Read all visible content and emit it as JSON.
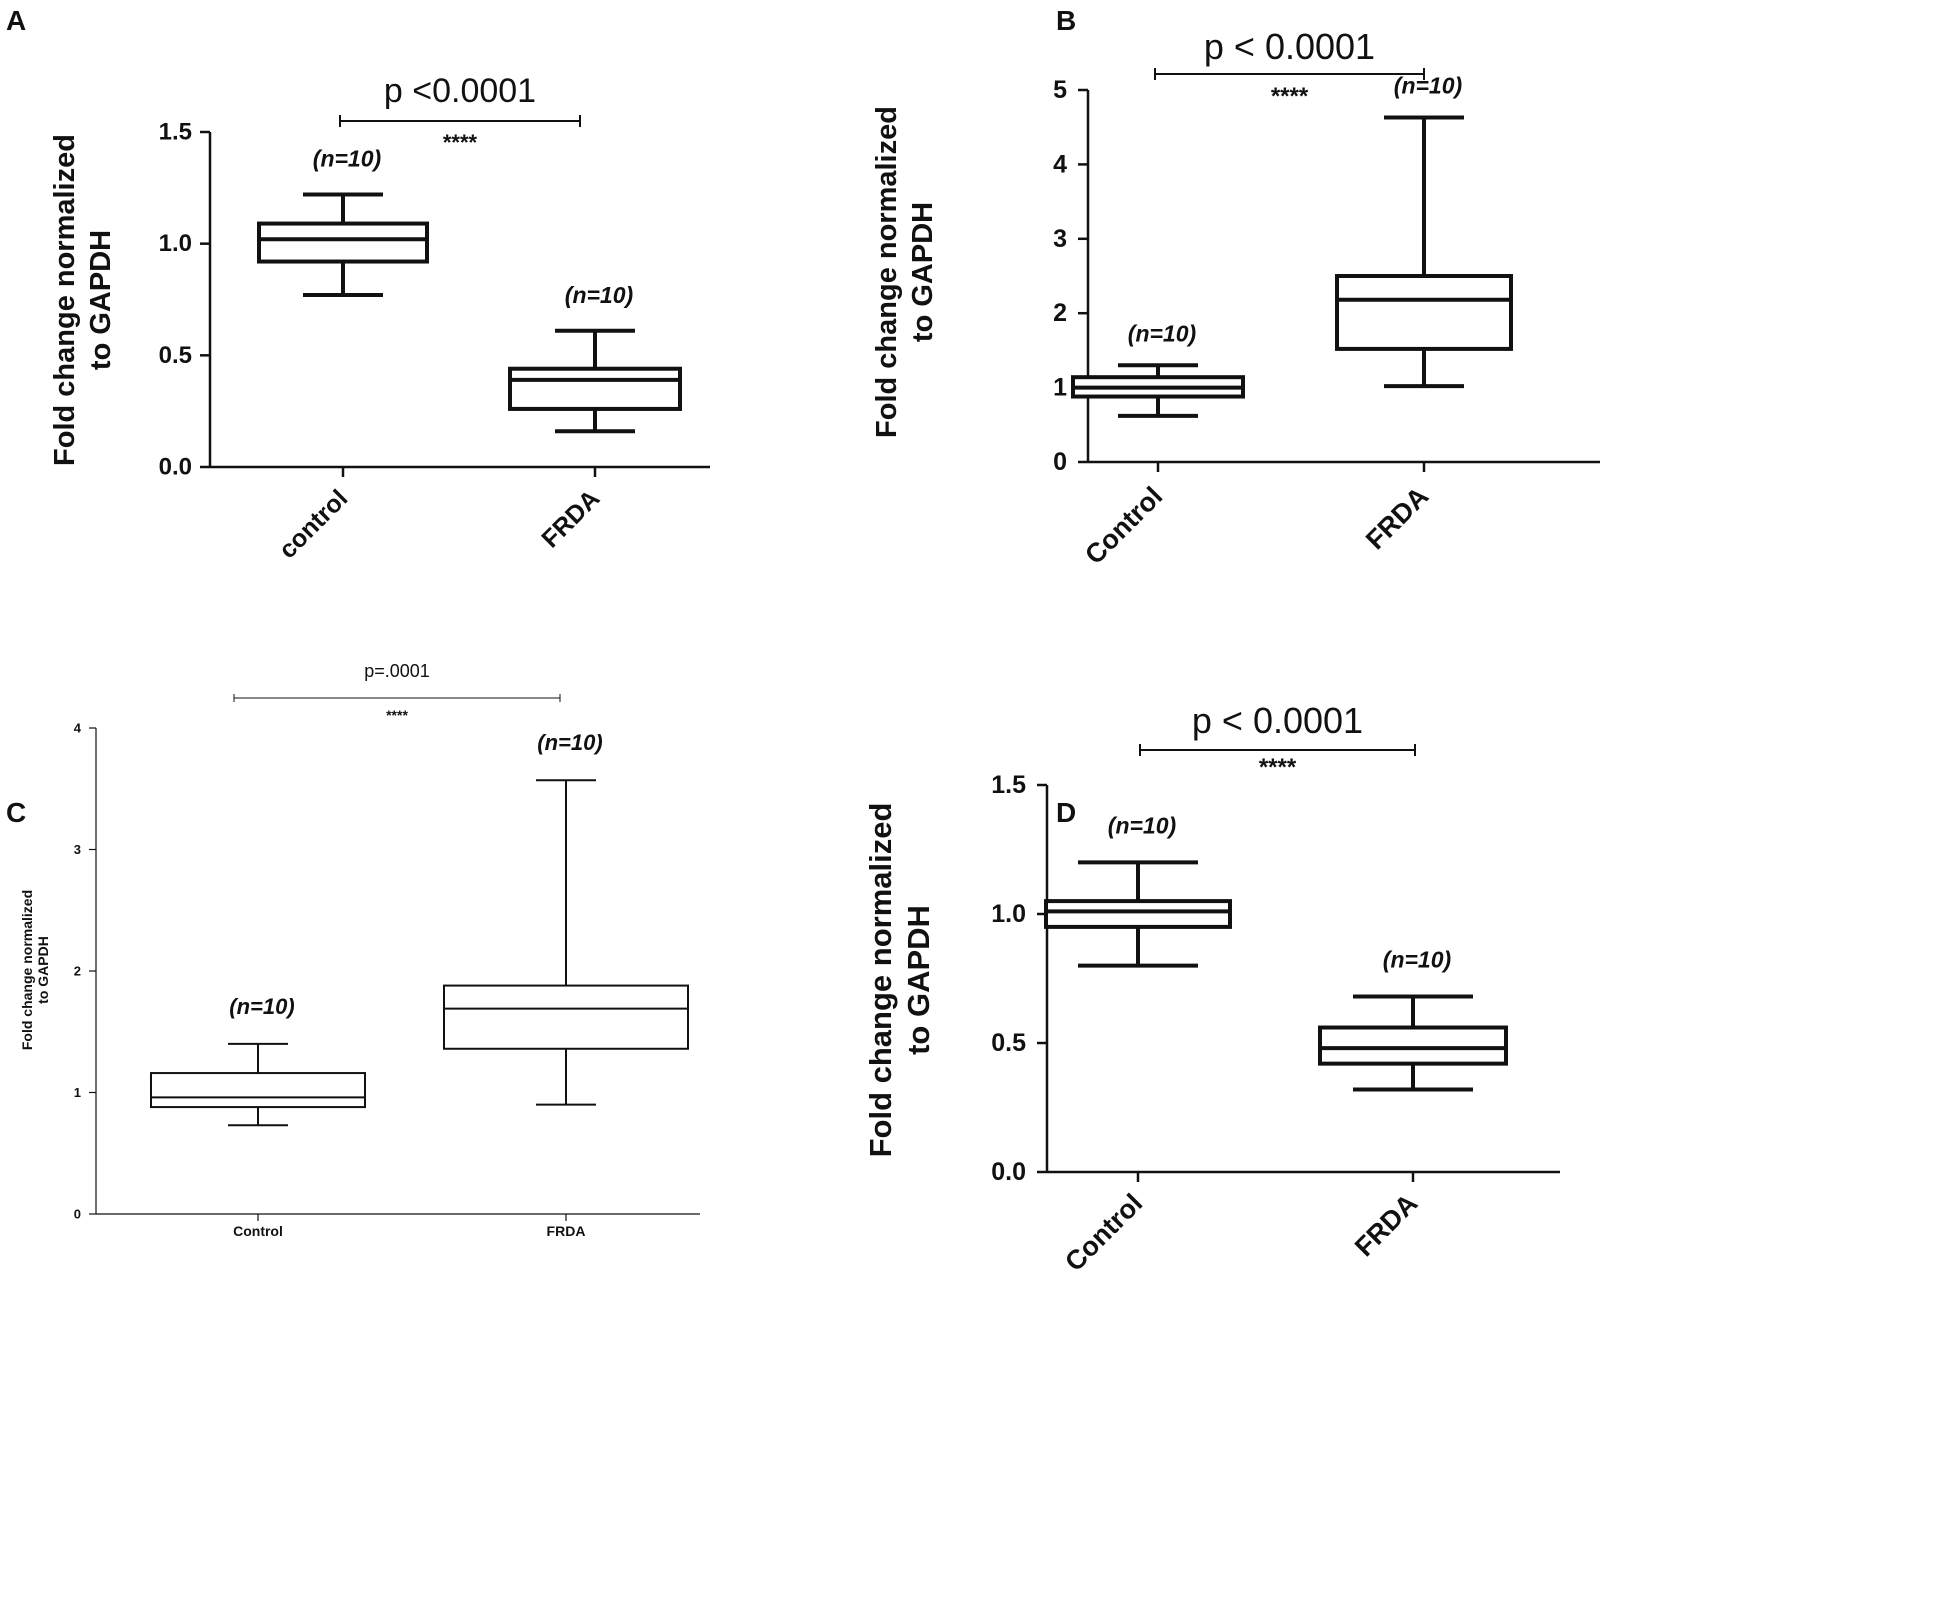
{
  "figure": {
    "panels": [
      {
        "label": "A"
      },
      {
        "label": "B"
      },
      {
        "label": "C"
      },
      {
        "label": "D"
      }
    ]
  },
  "chart_data": [
    {
      "panel": "A",
      "type": "box",
      "title": "",
      "xlabel": "",
      "ylabel": "Fold change normalized to GAPDH",
      "ylabel_lines": [
        "Fold change normalized",
        "to GAPDH"
      ],
      "ylim": [
        0,
        1.5
      ],
      "yticks": [
        0,
        0.5,
        1.0,
        1.5
      ],
      "ytick_labels": [
        "0.0",
        "0.5",
        "1.0",
        "1.5"
      ],
      "categories": [
        "control",
        "FRDA"
      ],
      "boxes": [
        {
          "name": "control",
          "whisker_low": 0.77,
          "q1": 0.92,
          "median": 1.02,
          "q3": 1.09,
          "whisker_high": 1.22,
          "n_label": "(n=10)"
        },
        {
          "name": "FRDA",
          "whisker_low": 0.16,
          "q1": 0.26,
          "median": 0.39,
          "q3": 0.44,
          "whisker_high": 0.61,
          "n_label": "(n=10)"
        }
      ],
      "significance": {
        "text": "p <0.0001",
        "stars": "****"
      }
    },
    {
      "panel": "B",
      "type": "box",
      "title": "",
      "xlabel": "",
      "ylabel": "Fold change normalized to GAPDH",
      "ylabel_lines": [
        "Fold change normalized",
        "to GAPDH"
      ],
      "ylim": [
        0,
        5
      ],
      "yticks": [
        0,
        1,
        2,
        3,
        4,
        5
      ],
      "ytick_labels": [
        "0",
        "1",
        "2",
        "3",
        "4",
        "5"
      ],
      "categories": [
        "Control",
        "FRDA"
      ],
      "boxes": [
        {
          "name": "Control",
          "whisker_low": 0.62,
          "q1": 0.88,
          "median": 1.0,
          "q3": 1.14,
          "whisker_high": 1.3,
          "n_label": "(n=10)"
        },
        {
          "name": "FRDA",
          "whisker_low": 1.02,
          "q1": 1.52,
          "median": 2.18,
          "q3": 2.5,
          "whisker_high": 4.63,
          "n_label": "(n=10)"
        }
      ],
      "significance": {
        "text": "p < 0.0001",
        "stars": "****"
      }
    },
    {
      "panel": "C",
      "type": "box",
      "title": "",
      "xlabel": "",
      "ylabel": "Fold change normalized to GAPDH",
      "ylabel_lines": [
        "Fold change normalized",
        "to GAPDH"
      ],
      "ylim": [
        0,
        4
      ],
      "yticks": [
        0,
        1,
        2,
        3,
        4
      ],
      "ytick_labels": [
        "0",
        "1",
        "2",
        "3",
        "4"
      ],
      "categories": [
        "Control",
        "FRDA"
      ],
      "boxes": [
        {
          "name": "Control",
          "whisker_low": 0.73,
          "q1": 0.88,
          "median": 0.96,
          "q3": 1.16,
          "whisker_high": 1.4,
          "n_label": "(n=10)"
        },
        {
          "name": "FRDA",
          "whisker_low": 0.9,
          "q1": 1.36,
          "median": 1.69,
          "q3": 1.88,
          "whisker_high": 3.57,
          "n_label": "(n=10)"
        }
      ],
      "significance": {
        "text": "p=.0001",
        "stars": "****"
      }
    },
    {
      "panel": "D",
      "type": "box",
      "title": "",
      "xlabel": "",
      "ylabel": "Fold change normalized to GAPDH",
      "ylabel_lines": [
        "Fold change normalized",
        "to GAPDH"
      ],
      "ylim": [
        0,
        1.5
      ],
      "yticks": [
        0,
        0.5,
        1.0,
        1.5
      ],
      "ytick_labels": [
        "0.0",
        "0.5",
        "1.0",
        "1.5"
      ],
      "categories": [
        "Control",
        "FRDA"
      ],
      "boxes": [
        {
          "name": "Control",
          "whisker_low": 0.8,
          "q1": 0.95,
          "median": 1.01,
          "q3": 1.05,
          "whisker_high": 1.2,
          "n_label": "(n=10)"
        },
        {
          "name": "FRDA",
          "whisker_low": 0.32,
          "q1": 0.42,
          "median": 0.48,
          "q3": 0.56,
          "whisker_high": 0.68,
          "n_label": "(n=10)"
        }
      ],
      "significance": {
        "text": "p < 0.0001",
        "stars": "****"
      }
    }
  ]
}
